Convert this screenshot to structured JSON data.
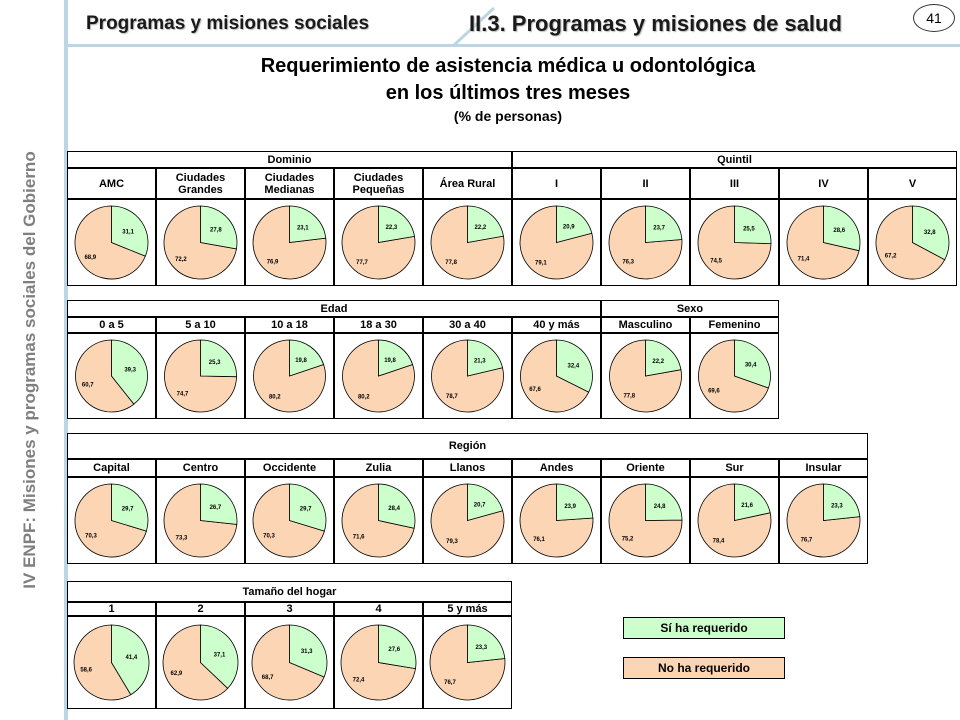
{
  "sidebar": {
    "text": "IV ENPF:  Misiones y programas sociales del Gobierno"
  },
  "header": {
    "left": "Programas y misiones sociales",
    "right": "II.3. Programas y misiones de salud",
    "page_number": "41"
  },
  "title": {
    "line1": "Requerimiento de asistencia médica u odontológica",
    "line2": "en los últimos tres meses",
    "line3": "(% de personas)"
  },
  "legend": {
    "yes": "Sí ha requerido",
    "no": "No ha requerido"
  },
  "colors": {
    "yes": "#ccffcc",
    "no": "#fcd5b4"
  },
  "chart_data": [
    {
      "type": "pie",
      "group": "Dominio",
      "pies": [
        {
          "label": "AMC",
          "yes": "31,1",
          "no": "68,9"
        },
        {
          "label": "Ciudades Grandes",
          "yes": "27,8",
          "no": "72,2"
        },
        {
          "label": "Ciudades Medianas",
          "yes": "23,1",
          "no": "76,9"
        },
        {
          "label": "Ciudades Pequeñas",
          "yes": "22,3",
          "no": "77,7"
        },
        {
          "label": "Área Rural",
          "yes": "22,2",
          "no": "77,8"
        }
      ]
    },
    {
      "type": "pie",
      "group": "Quintil",
      "pies": [
        {
          "label": "I",
          "yes": "20,9",
          "no": "79,1"
        },
        {
          "label": "II",
          "yes": "23,7",
          "no": "76,3"
        },
        {
          "label": "III",
          "yes": "25,5",
          "no": "74,5"
        },
        {
          "label": "IV",
          "yes": "28,6",
          "no": "71,4"
        },
        {
          "label": "V",
          "yes": "32,8",
          "no": "67,2"
        }
      ]
    },
    {
      "type": "pie",
      "group": "Edad",
      "pies": [
        {
          "label": "0 a 5",
          "yes": "39,3",
          "no": "60,7"
        },
        {
          "label": "5 a 10",
          "yes": "25,3",
          "no": "74,7"
        },
        {
          "label": "10 a 18",
          "yes": "19,8",
          "no": "80,2"
        },
        {
          "label": "18 a 30",
          "yes": "19,8",
          "no": "80,2"
        },
        {
          "label": "30 a 40",
          "yes": "21,3",
          "no": "78,7"
        },
        {
          "label": "40 y más",
          "yes": "32,4",
          "no": "67,6"
        }
      ]
    },
    {
      "type": "pie",
      "group": "Sexo",
      "pies": [
        {
          "label": "Masculino",
          "yes": "22,2",
          "no": "77,8"
        },
        {
          "label": "Femenino",
          "yes": "30,4",
          "no": "69,6"
        }
      ]
    },
    {
      "type": "pie",
      "group": "Región",
      "pies": [
        {
          "label": "Capital",
          "yes": "29,7",
          "no": "70,3"
        },
        {
          "label": "Centro",
          "yes": "26,7",
          "no": "73,3"
        },
        {
          "label": "Occidente",
          "yes": "29,7",
          "no": "70,3"
        },
        {
          "label": "Zulia",
          "yes": "28,4",
          "no": "71,6"
        },
        {
          "label": "Llanos",
          "yes": "20,7",
          "no": "79,3"
        },
        {
          "label": "Andes",
          "yes": "23,9",
          "no": "76,1"
        },
        {
          "label": "Oriente",
          "yes": "24,8",
          "no": "75,2"
        },
        {
          "label": "Sur",
          "yes": "21,6",
          "no": "78,4"
        },
        {
          "label": "Insular",
          "yes": "23,3",
          "no": "76,7"
        }
      ]
    },
    {
      "type": "pie",
      "group": "Tamaño del hogar",
      "pies": [
        {
          "label": "1",
          "yes": "41,4",
          "no": "58,6"
        },
        {
          "label": "2",
          "yes": "37,1",
          "no": "62,9"
        },
        {
          "label": "3",
          "yes": "31,3",
          "no": "68,7"
        },
        {
          "label": "4",
          "yes": "27,6",
          "no": "72,4"
        },
        {
          "label": "5 y más",
          "yes": "23,3",
          "no": "76,7"
        }
      ]
    }
  ]
}
